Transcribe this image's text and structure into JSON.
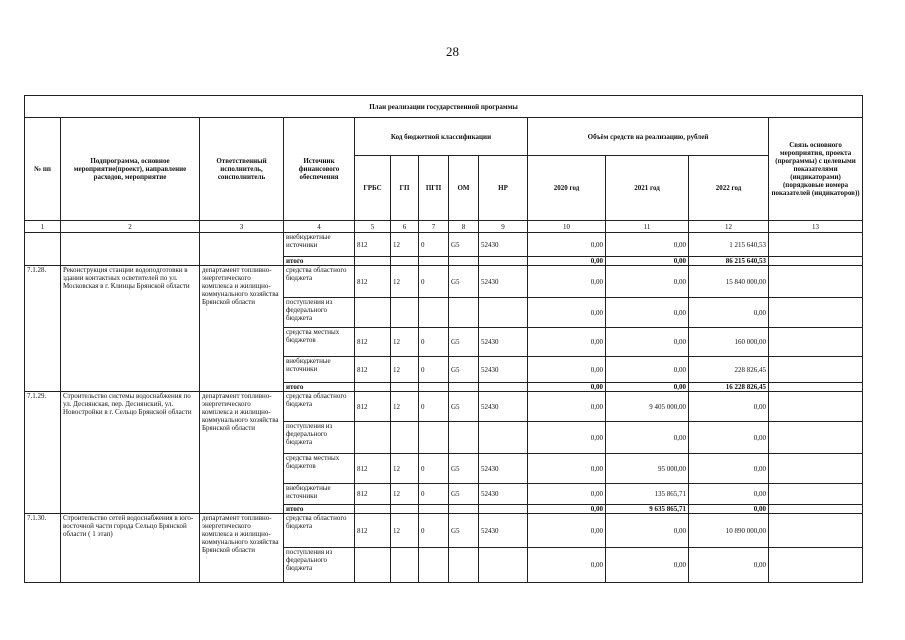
{
  "page_number": "28",
  "table": {
    "title": "План реализации государственной программы",
    "headers": {
      "num": "№ пп",
      "name": "Подпрограмма, основное мероприятие(проект), направление расходов, мероприятие",
      "executor": "Ответственный исполнитель, соисполнитель",
      "source": "Источник финансового обеспечения",
      "codes": "Код бюджетной классификации",
      "grbs": "ГРБС",
      "gp": "ГП",
      "pgp": "ПГП",
      "om": "ОМ",
      "nr": "НР",
      "funds": "Объём средств на реализацию, рублей",
      "y2020": "2020 год",
      "y2021": "2021 год",
      "y2022": "2022 год",
      "link": "Связь основного мероприятия, проекта (программы) с целевыми показателями (индикаторами) (порядковые номера показателей (индикаторов))"
    },
    "column_numbers": [
      "1",
      "2",
      "3",
      "4",
      "5",
      "6",
      "7",
      "8",
      "9",
      "10",
      "11",
      "12",
      "13"
    ],
    "sections": [
      {
        "rows": [
          {
            "source": "внебюджетные источники",
            "grbs": "812",
            "gp": "12",
            "pgp": "0",
            "om": "G5",
            "nr": "52430",
            "y2020": "0,00",
            "y2021": "0,00",
            "y2022": "1 215 640,53"
          },
          {
            "source": "итого",
            "y2020": "0,00",
            "y2021": "0,00",
            "y2022": "86 215 640,53"
          }
        ]
      },
      {
        "number": "7.1.28.",
        "name": "Реконструкция станции водоподготовки в здании контактных осветителей по ул. Московская в г. Клинцы Брянской области",
        "executor": "департамент топливно-энергетического комплекса и жилищно-коммунального хозяйства Брянской области",
        "rows": [
          {
            "source": "средства областного бюджета",
            "grbs": "812",
            "gp": "12",
            "pgp": "0",
            "om": "G5",
            "nr": "52430",
            "y2020": "0,00",
            "y2021": "0,00",
            "y2022": "15 840 000,00"
          },
          {
            "source": "поступления из федерального бюджета",
            "y2020": "0,00",
            "y2021": "0,00",
            "y2022": "0,00"
          },
          {
            "source": "средства местных бюджетов",
            "grbs": "812",
            "gp": "12",
            "pgp": "0",
            "om": "G5",
            "nr": "52430",
            "y2020": "0,00",
            "y2021": "0,00",
            "y2022": "160 000,00"
          },
          {
            "source": "внебюджетные источники",
            "grbs": "812",
            "gp": "12",
            "pgp": "0",
            "om": "G5",
            "nr": "52430",
            "y2020": "0,00",
            "y2021": "0,00",
            "y2022": "228 826,45"
          },
          {
            "source": "итого",
            "y2020": "0,00",
            "y2021": "0,00",
            "y2022": "16 228 826,45"
          }
        ]
      },
      {
        "number": "7.1.29.",
        "name": "Строительство системы водоснабжения по ул. Деснянская, пер. Деснянский, ул. Новостройки в г. Сельцо Брянской области",
        "executor": "департамент топливно-энергетического комплекса и жилищно-коммунального хозяйства Брянской области",
        "rows": [
          {
            "source": "средства областного бюджета",
            "grbs": "812",
            "gp": "12",
            "pgp": "0",
            "om": "G5",
            "nr": "52430",
            "y2020": "0,00",
            "y2021": "9 405 000,00",
            "y2022": "0,00"
          },
          {
            "source": "поступления из федерального бюджета",
            "y2020": "0,00",
            "y2021": "0,00",
            "y2022": "0,00"
          },
          {
            "source": "средства местных бюджетов",
            "grbs": "812",
            "gp": "12",
            "pgp": "0",
            "om": "G5",
            "nr": "52430",
            "y2020": "0,00",
            "y2021": "95 000,00",
            "y2022": "0,00"
          },
          {
            "source": "внебюджетные источники",
            "grbs": "812",
            "gp": "12",
            "pgp": "0",
            "om": "G5",
            "nr": "52430",
            "y2020": "0,00",
            "y2021": "135 865,71",
            "y2022": "0,00"
          },
          {
            "source": "итого",
            "y2020": "0,00",
            "y2021": "9 635 865,71",
            "y2022": "0,00"
          }
        ]
      },
      {
        "number": "7.1.30.",
        "name": "Строительство сетей водоснабжения в юго-восточной части города Сельцо Брянской области ( 1 этап)",
        "executor": "департамент топливно-энергетического комплекса и жилищно-коммунального хозяйства Брянской области",
        "rows": [
          {
            "source": "средства областного бюджета",
            "grbs": "812",
            "gp": "12",
            "pgp": "0",
            "om": "G5",
            "nr": "52430",
            "y2020": "0,00",
            "y2021": "0,00",
            "y2022": "10 890 000,00"
          },
          {
            "source": "поступления из федерального бюджета",
            "y2020": "0,00",
            "y2021": "0,00",
            "y2022": "0,00"
          }
        ]
      }
    ]
  }
}
